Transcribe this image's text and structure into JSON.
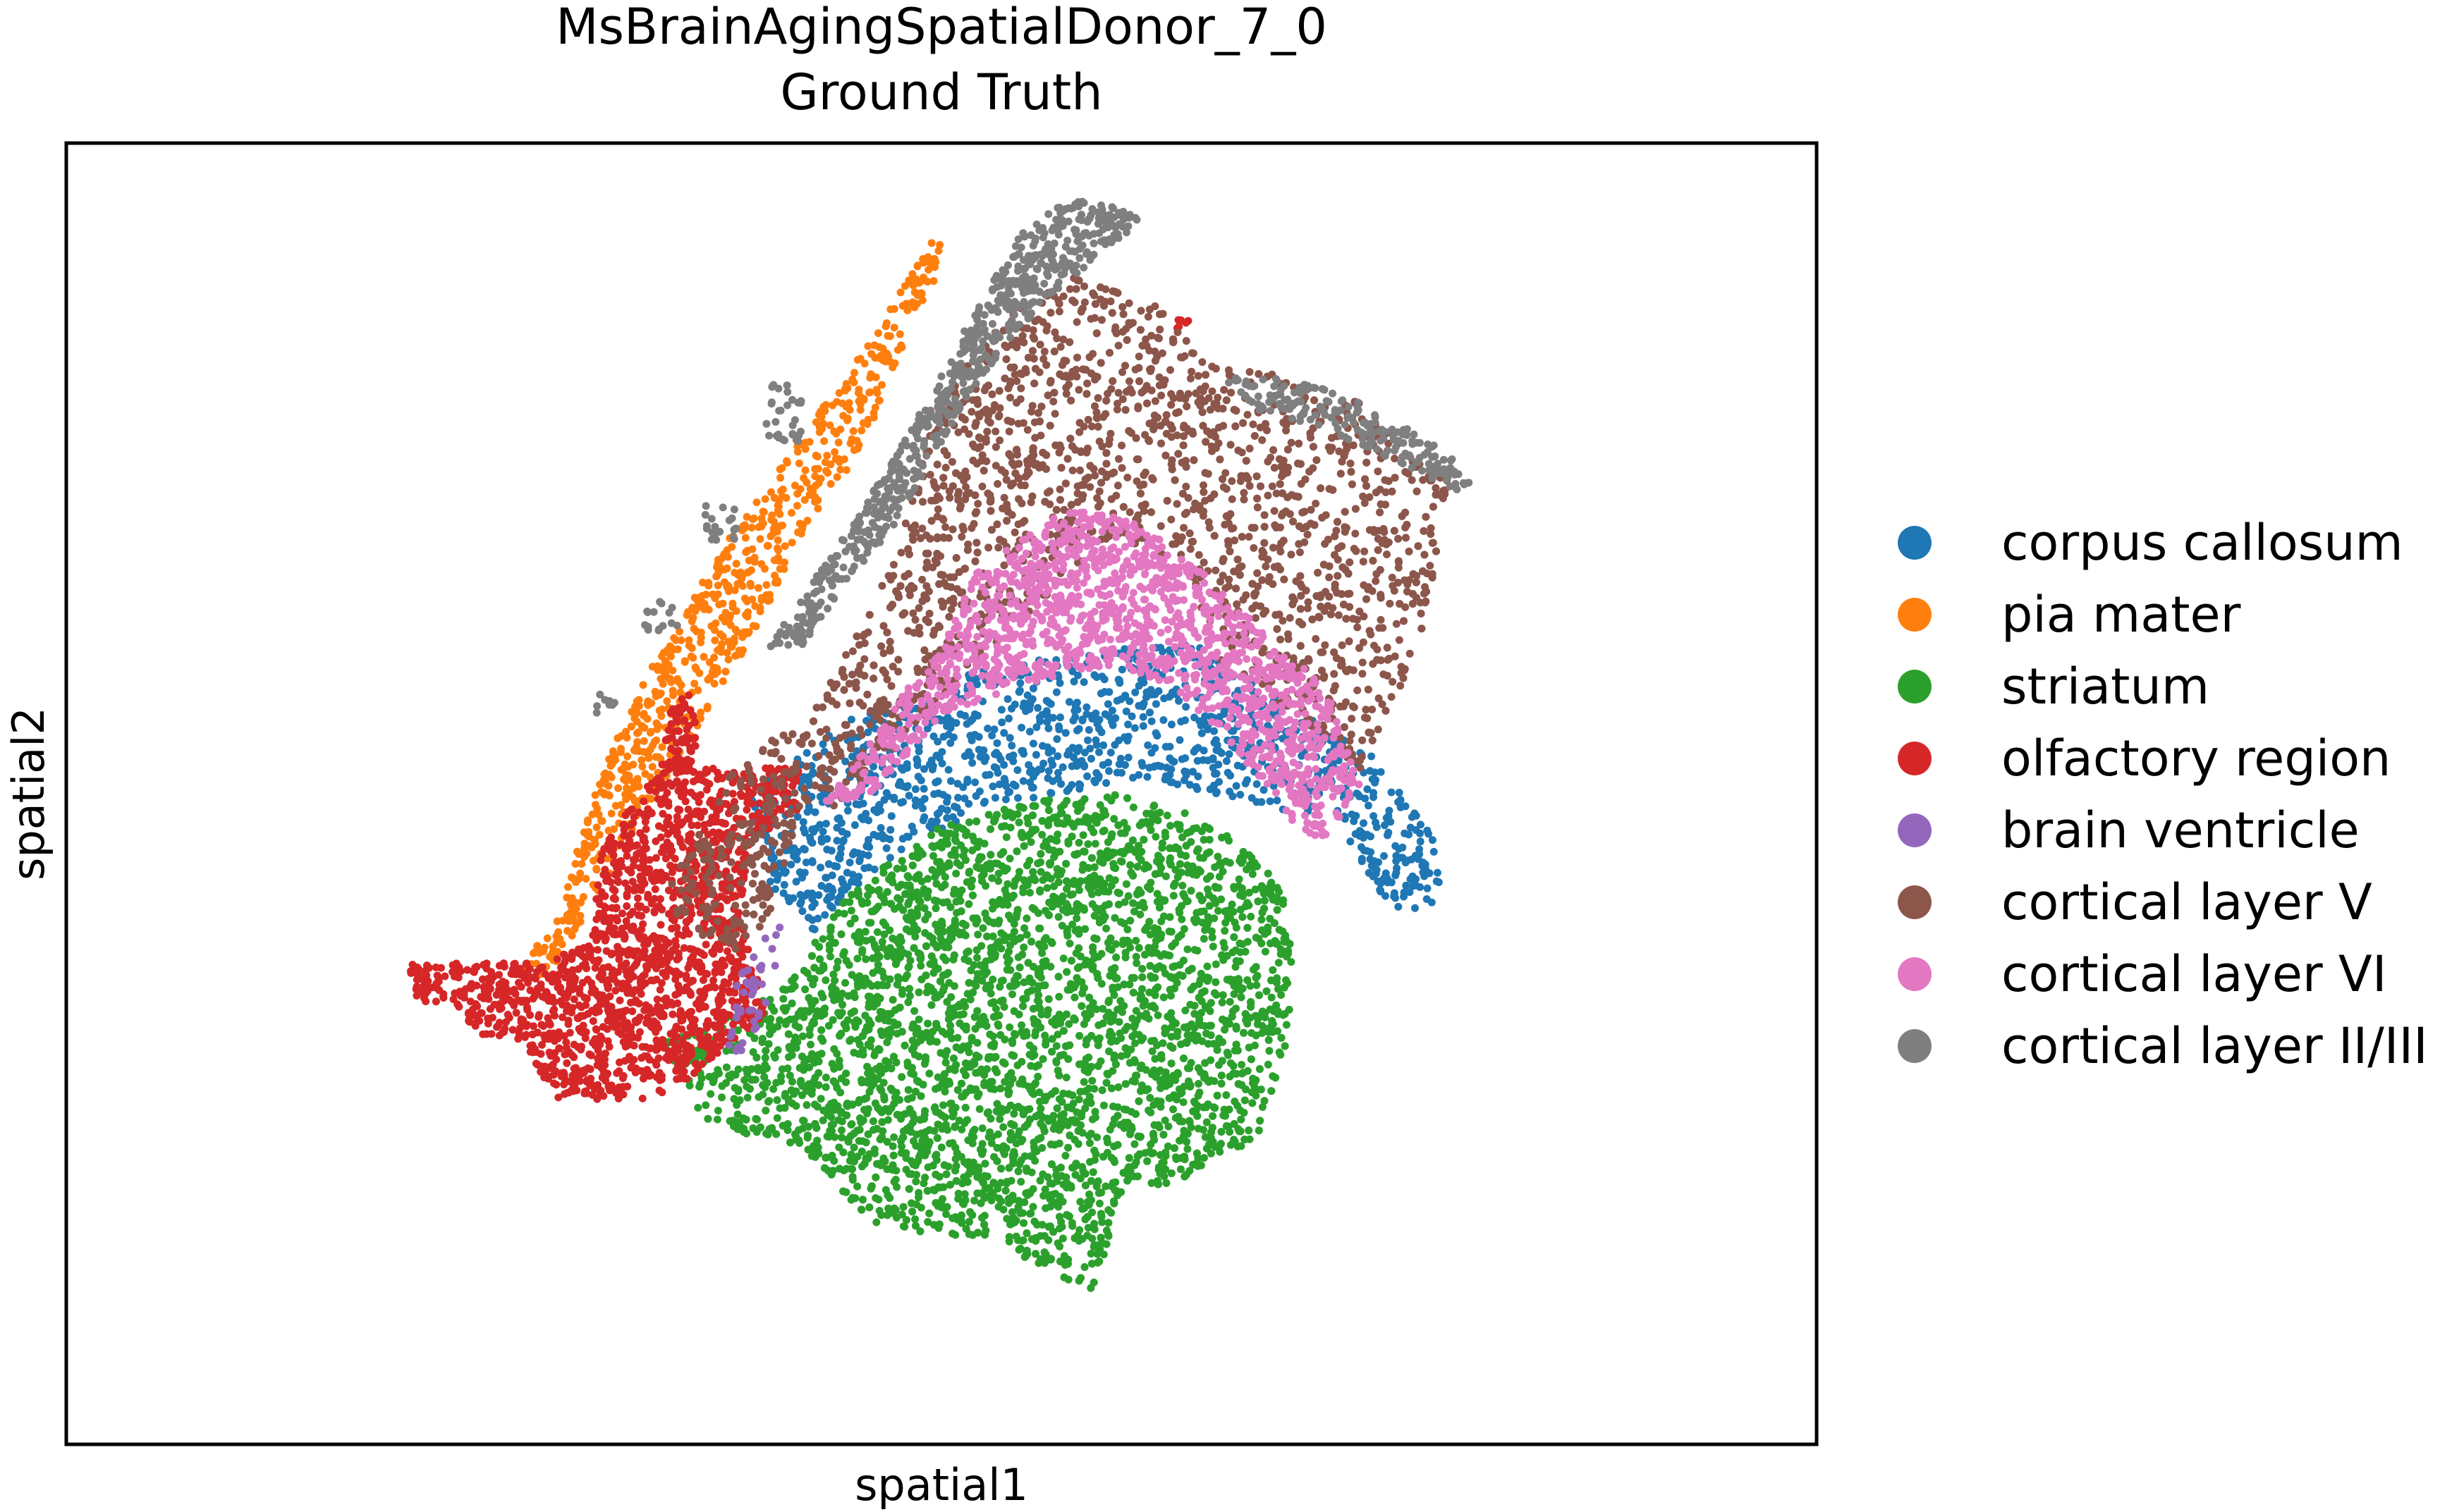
{
  "chart_data": {
    "type": "scatter",
    "title": "MsBrainAgingSpatialDonor_7_0",
    "subtitle": "Ground Truth",
    "xlabel": "spatial1",
    "ylabel": "spatial2",
    "xticks": [],
    "yticks": [],
    "grid": false,
    "legend_placement": "right",
    "series": [
      {
        "name": "corpus callosum",
        "color": "#1f77b4",
        "regions": [
          {
            "polygon": [
              [
                0.39,
                0.5
              ],
              [
                0.45,
                0.44
              ],
              [
                0.52,
                0.405
              ],
              [
                0.585,
                0.39
              ],
              [
                0.645,
                0.385
              ],
              [
                0.7,
                0.43
              ],
              [
                0.745,
                0.47
              ],
              [
                0.785,
                0.54
              ],
              [
                0.785,
                0.595
              ],
              [
                0.755,
                0.585
              ],
              [
                0.725,
                0.52
              ],
              [
                0.685,
                0.51
              ],
              [
                0.625,
                0.49
              ],
              [
                0.565,
                0.5
              ],
              [
                0.51,
                0.52
              ],
              [
                0.46,
                0.56
              ],
              [
                0.425,
                0.61
              ],
              [
                0.395,
                0.56
              ]
            ],
            "n": 1200
          }
        ]
      },
      {
        "name": "pia mater",
        "color": "#ff7f0e",
        "regions": [
          {
            "polygon": [
              [
                0.495,
                0.075
              ],
              [
                0.505,
                0.08
              ],
              [
                0.48,
                0.15
              ],
              [
                0.46,
                0.225
              ],
              [
                0.42,
                0.3
              ],
              [
                0.395,
                0.375
              ],
              [
                0.365,
                0.44
              ],
              [
                0.335,
                0.505
              ],
              [
                0.305,
                0.575
              ],
              [
                0.275,
                0.64
              ],
              [
                0.26,
                0.64
              ],
              [
                0.285,
                0.575
              ],
              [
                0.3,
                0.505
              ],
              [
                0.32,
                0.44
              ],
              [
                0.345,
                0.375
              ],
              [
                0.38,
                0.3
              ],
              [
                0.42,
                0.225
              ],
              [
                0.46,
                0.15
              ]
            ],
            "n": 750
          }
        ]
      },
      {
        "name": "striatum",
        "color": "#2ca02c",
        "regions": [
          {
            "polygon": [
              [
                0.415,
                0.64
              ],
              [
                0.45,
                0.57
              ],
              [
                0.5,
                0.525
              ],
              [
                0.555,
                0.505
              ],
              [
                0.6,
                0.5
              ],
              [
                0.64,
                0.515
              ],
              [
                0.68,
                0.545
              ],
              [
                0.7,
                0.59
              ],
              [
                0.7,
                0.68
              ],
              [
                0.68,
                0.765
              ],
              [
                0.64,
                0.795
              ],
              [
                0.6,
                0.81
              ],
              [
                0.59,
                0.88
              ],
              [
                0.56,
                0.88
              ],
              [
                0.54,
                0.845
              ],
              [
                0.5,
                0.84
              ],
              [
                0.46,
                0.83
              ],
              [
                0.44,
                0.8
              ],
              [
                0.42,
                0.77
              ],
              [
                0.38,
                0.76
              ],
              [
                0.36,
                0.745
              ],
              [
                0.34,
                0.69
              ],
              [
                0.39,
                0.665
              ]
            ],
            "n": 5000
          }
        ]
      },
      {
        "name": "olfactory region",
        "color": "#d62728",
        "regions": [
          {
            "polygon": [
              [
                0.275,
                0.63
              ],
              [
                0.3,
                0.61
              ],
              [
                0.305,
                0.545
              ],
              [
                0.325,
                0.505
              ],
              [
                0.34,
                0.48
              ],
              [
                0.345,
                0.43
              ],
              [
                0.36,
                0.42
              ],
              [
                0.36,
                0.48
              ],
              [
                0.39,
                0.48
              ],
              [
                0.42,
                0.48
              ],
              [
                0.42,
                0.51
              ],
              [
                0.39,
                0.54
              ],
              [
                0.385,
                0.59
              ],
              [
                0.4,
                0.67
              ],
              [
                0.38,
                0.69
              ],
              [
                0.35,
                0.725
              ],
              [
                0.33,
                0.735
              ],
              [
                0.28,
                0.735
              ],
              [
                0.26,
                0.69
              ],
              [
                0.24,
                0.69
              ],
              [
                0.22,
                0.66
              ],
              [
                0.2,
                0.66
              ],
              [
                0.195,
                0.63
              ]
            ],
            "n": 1800
          },
          {
            "polygon": [
              [
                0.634,
                0.135
              ],
              [
                0.641,
                0.135
              ],
              [
                0.641,
                0.145
              ],
              [
                0.634,
                0.145
              ]
            ],
            "n": 6
          }
        ]
      },
      {
        "name": "brain ventricle",
        "color": "#9467bd",
        "regions": [
          {
            "polygon": [
              [
                0.4,
                0.605
              ],
              [
                0.41,
                0.595
              ],
              [
                0.405,
                0.64
              ],
              [
                0.395,
                0.68
              ],
              [
                0.385,
                0.7
              ],
              [
                0.378,
                0.7
              ],
              [
                0.382,
                0.65
              ],
              [
                0.392,
                0.62
              ]
            ],
            "n": 45
          }
        ]
      },
      {
        "name": "cortical layer V",
        "color": "#8c564b",
        "regions": [
          {
            "polygon": [
              [
                0.5,
                0.19
              ],
              [
                0.54,
                0.13
              ],
              [
                0.58,
                0.1
              ],
              [
                0.62,
                0.12
              ],
              [
                0.655,
                0.17
              ],
              [
                0.7,
                0.18
              ],
              [
                0.74,
                0.195
              ],
              [
                0.77,
                0.24
              ],
              [
                0.79,
                0.26
              ],
              [
                0.775,
                0.38
              ],
              [
                0.74,
                0.485
              ],
              [
                0.71,
                0.45
              ],
              [
                0.66,
                0.4
              ],
              [
                0.64,
                0.33
              ],
              [
                0.6,
                0.3
              ],
              [
                0.56,
                0.35
              ],
              [
                0.52,
                0.4
              ],
              [
                0.47,
                0.47
              ],
              [
                0.44,
                0.51
              ],
              [
                0.42,
                0.515
              ],
              [
                0.4,
                0.6
              ],
              [
                0.38,
                0.625
              ],
              [
                0.35,
                0.6
              ],
              [
                0.345,
                0.57
              ],
              [
                0.38,
                0.48
              ],
              [
                0.43,
                0.43
              ],
              [
                0.47,
                0.33
              ]
            ],
            "n": 3000
          }
        ]
      },
      {
        "name": "cortical layer VI",
        "color": "#e377c2",
        "regions": [
          {
            "polygon": [
              [
                0.52,
                0.33
              ],
              [
                0.57,
                0.28
              ],
              [
                0.61,
                0.29
              ],
              [
                0.65,
                0.33
              ],
              [
                0.68,
                0.37
              ],
              [
                0.72,
                0.42
              ],
              [
                0.74,
                0.49
              ],
              [
                0.72,
                0.54
              ],
              [
                0.7,
                0.52
              ],
              [
                0.665,
                0.46
              ],
              [
                0.635,
                0.42
              ],
              [
                0.6,
                0.4
              ],
              [
                0.55,
                0.415
              ],
              [
                0.5,
                0.44
              ],
              [
                0.46,
                0.5
              ],
              [
                0.43,
                0.51
              ],
              [
                0.46,
                0.46
              ],
              [
                0.48,
                0.42
              ],
              [
                0.5,
                0.39
              ]
            ],
            "n": 1500
          }
        ]
      },
      {
        "name": "cortical layer II/III",
        "color": "#7f7f7f",
        "regions": [
          {
            "polygon": [
              [
                0.545,
                0.07
              ],
              [
                0.565,
                0.045
              ],
              [
                0.595,
                0.045
              ],
              [
                0.615,
                0.06
              ],
              [
                0.56,
                0.12
              ],
              [
                0.525,
                0.175
              ],
              [
                0.5,
                0.23
              ],
              [
                0.475,
                0.29
              ],
              [
                0.445,
                0.34
              ],
              [
                0.42,
                0.39
              ],
              [
                0.4,
                0.39
              ],
              [
                0.43,
                0.33
              ],
              [
                0.46,
                0.27
              ],
              [
                0.49,
                0.2
              ],
              [
                0.515,
                0.14
              ]
            ],
            "n": 650
          },
          {
            "polygon": [
              [
                0.66,
                0.18
              ],
              [
                0.7,
                0.18
              ],
              [
                0.74,
                0.2
              ],
              [
                0.78,
                0.23
              ],
              [
                0.8,
                0.25
              ],
              [
                0.805,
                0.27
              ],
              [
                0.79,
                0.265
              ],
              [
                0.76,
                0.245
              ],
              [
                0.72,
                0.22
              ],
              [
                0.68,
                0.205
              ]
            ],
            "n": 200
          },
          {
            "polygon": [
              [
                0.4,
                0.185
              ],
              [
                0.42,
                0.185
              ],
              [
                0.42,
                0.23
              ],
              [
                0.4,
                0.23
              ]
            ],
            "n": 30
          },
          {
            "polygon": [
              [
                0.365,
                0.275
              ],
              [
                0.385,
                0.275
              ],
              [
                0.385,
                0.305
              ],
              [
                0.365,
                0.305
              ]
            ],
            "n": 20
          },
          {
            "polygon": [
              [
                0.33,
                0.35
              ],
              [
                0.35,
                0.35
              ],
              [
                0.35,
                0.375
              ],
              [
                0.33,
                0.375
              ]
            ],
            "n": 15
          },
          {
            "polygon": [
              [
                0.3,
                0.42
              ],
              [
                0.315,
                0.42
              ],
              [
                0.315,
                0.44
              ],
              [
                0.3,
                0.44
              ]
            ],
            "n": 8
          }
        ]
      }
    ]
  }
}
